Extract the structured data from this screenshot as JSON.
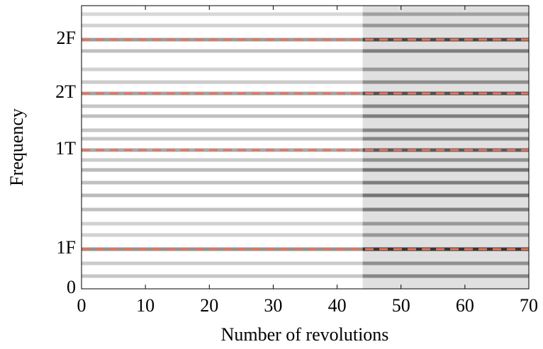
{
  "chart_data": {
    "type": "spectrogram",
    "x_label": "Number of revolutions",
    "y_label": "Frequency",
    "xlim": [
      0,
      70
    ],
    "xticks": [
      0,
      10,
      20,
      30,
      40,
      50,
      60,
      70
    ],
    "ylim": [
      0,
      1
    ],
    "yticks": [
      0,
      {
        "value": 0.14,
        "label": "1F"
      },
      {
        "value": 0.49,
        "label": "1T"
      },
      {
        "value": 0.69,
        "label": "2T"
      },
      {
        "value": 0.88,
        "label": "2F"
      }
    ],
    "reference_line_color": "#e8735a",
    "shade_from": 44,
    "bands": [
      {
        "y": 0.045,
        "intensity": 0.5
      },
      {
        "y": 0.09,
        "intensity": 0.45
      },
      {
        "y": 0.14,
        "intensity": 0.95
      },
      {
        "y": 0.19,
        "intensity": 0.4
      },
      {
        "y": 0.23,
        "intensity": 0.4
      },
      {
        "y": 0.28,
        "intensity": 0.55
      },
      {
        "y": 0.33,
        "intensity": 0.6
      },
      {
        "y": 0.375,
        "intensity": 0.55
      },
      {
        "y": 0.42,
        "intensity": 0.6
      },
      {
        "y": 0.455,
        "intensity": 0.45
      },
      {
        "y": 0.49,
        "intensity": 0.75
      },
      {
        "y": 0.53,
        "intensity": 0.5
      },
      {
        "y": 0.56,
        "intensity": 0.5
      },
      {
        "y": 0.61,
        "intensity": 0.55
      },
      {
        "y": 0.645,
        "intensity": 0.5
      },
      {
        "y": 0.69,
        "intensity": 0.8
      },
      {
        "y": 0.73,
        "intensity": 0.45
      },
      {
        "y": 0.775,
        "intensity": 0.4
      },
      {
        "y": 0.84,
        "intensity": 0.55
      },
      {
        "y": 0.88,
        "intensity": 0.85
      },
      {
        "y": 0.93,
        "intensity": 0.4
      },
      {
        "y": 0.97,
        "intensity": 0.35
      }
    ]
  }
}
